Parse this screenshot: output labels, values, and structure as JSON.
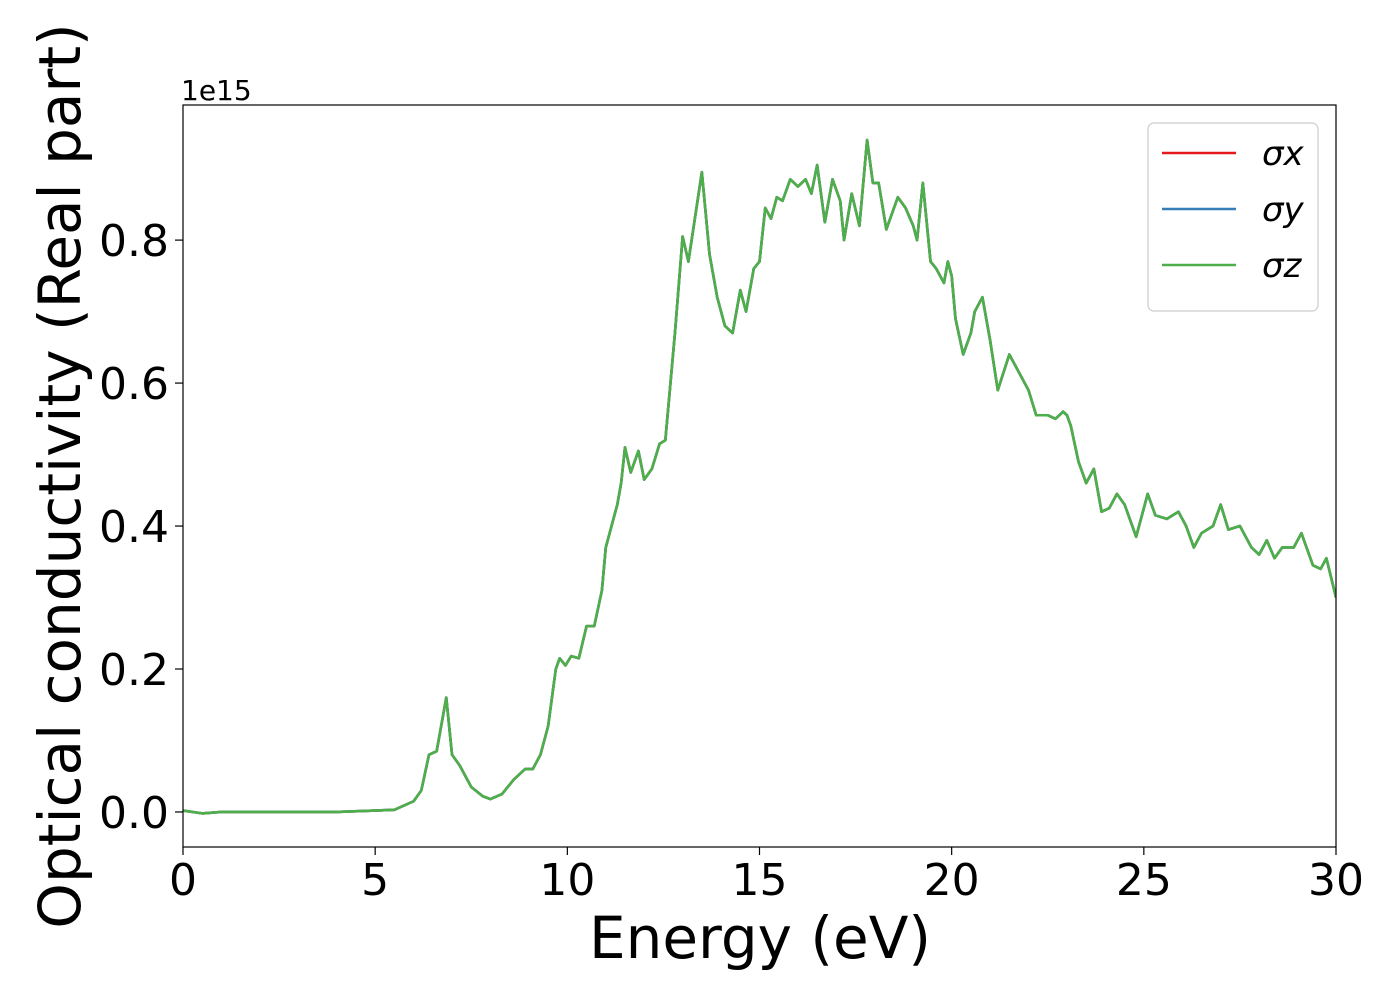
{
  "chart_data": {
    "type": "line",
    "xlabel": "Energy (eV)",
    "ylabel": "Optical conductivity (Real part)",
    "y_offset_label": "1e15",
    "x": [
      0,
      0.5,
      1,
      2,
      3,
      4,
      5,
      5.5,
      6.0,
      6.2,
      6.4,
      6.6,
      6.85,
      7.0,
      7.2,
      7.5,
      7.8,
      8.0,
      8.3,
      8.6,
      8.9,
      9.1,
      9.3,
      9.5,
      9.7,
      9.8,
      9.95,
      10.1,
      10.3,
      10.5,
      10.7,
      10.9,
      11.0,
      11.1,
      11.3,
      11.4,
      11.5,
      11.65,
      11.85,
      12.0,
      12.2,
      12.4,
      12.55,
      12.8,
      13.0,
      13.15,
      13.5,
      13.7,
      13.9,
      14.1,
      14.3,
      14.5,
      14.65,
      14.85,
      15.0,
      15.15,
      15.3,
      15.45,
      15.6,
      15.8,
      16.0,
      16.2,
      16.35,
      16.5,
      16.7,
      16.9,
      17.1,
      17.2,
      17.4,
      17.6,
      17.8,
      17.95,
      18.1,
      18.3,
      18.6,
      18.8,
      19.0,
      19.1,
      19.25,
      19.45,
      19.6,
      19.8,
      19.9,
      20.0,
      20.1,
      20.3,
      20.5,
      20.6,
      20.8,
      21.0,
      21.2,
      21.5,
      21.7,
      22.0,
      22.2,
      22.5,
      22.7,
      22.9,
      23.0,
      23.1,
      23.3,
      23.5,
      23.7,
      23.9,
      24.1,
      24.3,
      24.5,
      24.8,
      25.1,
      25.3,
      25.6,
      25.9,
      26.1,
      26.3,
      26.5,
      26.8,
      27.0,
      27.2,
      27.5,
      27.8,
      28.0,
      28.2,
      28.4,
      28.6,
      28.9,
      29.1,
      29.4,
      29.6,
      29.75,
      30.0
    ],
    "series": [
      {
        "name": "σx",
        "color": "#e41a1c",
        "values": [
          0.002,
          -0.002,
          0.0,
          0.0,
          0.0,
          0.0,
          0.002,
          0.003,
          0.015,
          0.03,
          0.08,
          0.085,
          0.16,
          0.08,
          0.065,
          0.035,
          0.022,
          0.018,
          0.025,
          0.045,
          0.06,
          0.06,
          0.08,
          0.12,
          0.2,
          0.215,
          0.205,
          0.218,
          0.215,
          0.26,
          0.26,
          0.31,
          0.37,
          0.39,
          0.43,
          0.46,
          0.51,
          0.475,
          0.505,
          0.465,
          0.48,
          0.515,
          0.52,
          0.67,
          0.805,
          0.77,
          0.895,
          0.78,
          0.72,
          0.68,
          0.67,
          0.73,
          0.7,
          0.76,
          0.77,
          0.845,
          0.83,
          0.86,
          0.855,
          0.885,
          0.875,
          0.885,
          0.865,
          0.905,
          0.825,
          0.885,
          0.855,
          0.8,
          0.865,
          0.82,
          0.94,
          0.88,
          0.88,
          0.815,
          0.86,
          0.845,
          0.82,
          0.8,
          0.88,
          0.77,
          0.76,
          0.74,
          0.77,
          0.75,
          0.69,
          0.64,
          0.67,
          0.7,
          0.72,
          0.66,
          0.59,
          0.64,
          0.62,
          0.59,
          0.555,
          0.555,
          0.55,
          0.56,
          0.555,
          0.54,
          0.49,
          0.46,
          0.48,
          0.42,
          0.425,
          0.445,
          0.43,
          0.385,
          0.445,
          0.415,
          0.41,
          0.42,
          0.4,
          0.37,
          0.39,
          0.4,
          0.43,
          0.395,
          0.4,
          0.37,
          0.36,
          0.38,
          0.355,
          0.37,
          0.37,
          0.39,
          0.345,
          0.34,
          0.355,
          0.3
        ]
      },
      {
        "name": "σy",
        "color": "#377eb8",
        "values": [
          0.002,
          -0.002,
          0.0,
          0.0,
          0.0,
          0.0,
          0.002,
          0.003,
          0.015,
          0.03,
          0.08,
          0.085,
          0.16,
          0.08,
          0.065,
          0.035,
          0.022,
          0.018,
          0.025,
          0.045,
          0.06,
          0.06,
          0.08,
          0.12,
          0.2,
          0.215,
          0.205,
          0.218,
          0.215,
          0.26,
          0.26,
          0.31,
          0.37,
          0.39,
          0.43,
          0.46,
          0.51,
          0.475,
          0.505,
          0.465,
          0.48,
          0.515,
          0.52,
          0.67,
          0.805,
          0.77,
          0.895,
          0.78,
          0.72,
          0.68,
          0.67,
          0.73,
          0.7,
          0.76,
          0.77,
          0.845,
          0.83,
          0.86,
          0.855,
          0.885,
          0.875,
          0.885,
          0.865,
          0.905,
          0.825,
          0.885,
          0.855,
          0.8,
          0.865,
          0.82,
          0.94,
          0.88,
          0.88,
          0.815,
          0.86,
          0.845,
          0.82,
          0.8,
          0.88,
          0.77,
          0.76,
          0.74,
          0.77,
          0.75,
          0.69,
          0.64,
          0.67,
          0.7,
          0.72,
          0.66,
          0.59,
          0.64,
          0.62,
          0.59,
          0.555,
          0.555,
          0.55,
          0.56,
          0.555,
          0.54,
          0.49,
          0.46,
          0.48,
          0.42,
          0.425,
          0.445,
          0.43,
          0.385,
          0.445,
          0.415,
          0.41,
          0.42,
          0.4,
          0.37,
          0.39,
          0.4,
          0.43,
          0.395,
          0.4,
          0.37,
          0.36,
          0.38,
          0.355,
          0.37,
          0.37,
          0.39,
          0.345,
          0.34,
          0.355,
          0.3
        ]
      },
      {
        "name": "σz",
        "color": "#4daf4a",
        "values": [
          0.002,
          -0.002,
          0.0,
          0.0,
          0.0,
          0.0,
          0.002,
          0.003,
          0.015,
          0.03,
          0.08,
          0.085,
          0.16,
          0.08,
          0.065,
          0.035,
          0.022,
          0.018,
          0.025,
          0.045,
          0.06,
          0.06,
          0.08,
          0.12,
          0.2,
          0.215,
          0.205,
          0.218,
          0.215,
          0.26,
          0.26,
          0.31,
          0.37,
          0.39,
          0.43,
          0.46,
          0.51,
          0.475,
          0.505,
          0.465,
          0.48,
          0.515,
          0.52,
          0.67,
          0.805,
          0.77,
          0.895,
          0.78,
          0.72,
          0.68,
          0.67,
          0.73,
          0.7,
          0.76,
          0.77,
          0.845,
          0.83,
          0.86,
          0.855,
          0.885,
          0.875,
          0.885,
          0.865,
          0.905,
          0.825,
          0.885,
          0.855,
          0.8,
          0.865,
          0.82,
          0.94,
          0.88,
          0.88,
          0.815,
          0.86,
          0.845,
          0.82,
          0.8,
          0.88,
          0.77,
          0.76,
          0.74,
          0.77,
          0.75,
          0.69,
          0.64,
          0.67,
          0.7,
          0.72,
          0.66,
          0.59,
          0.64,
          0.62,
          0.59,
          0.555,
          0.555,
          0.55,
          0.56,
          0.555,
          0.54,
          0.49,
          0.46,
          0.48,
          0.42,
          0.425,
          0.445,
          0.43,
          0.385,
          0.445,
          0.415,
          0.41,
          0.42,
          0.4,
          0.37,
          0.39,
          0.4,
          0.43,
          0.395,
          0.4,
          0.37,
          0.36,
          0.38,
          0.355,
          0.37,
          0.37,
          0.39,
          0.345,
          0.34,
          0.355,
          0.3
        ]
      }
    ],
    "xlim": [
      0,
      30
    ],
    "xticks": [
      0,
      5,
      10,
      15,
      20,
      25,
      30
    ],
    "ylim": [
      -0.049,
      0.989
    ],
    "yticks": [
      {
        "value": 0,
        "label": "0.0"
      },
      0.2,
      0.4,
      0.6,
      0.8
    ],
    "grid": false,
    "legend": "upper right"
  }
}
